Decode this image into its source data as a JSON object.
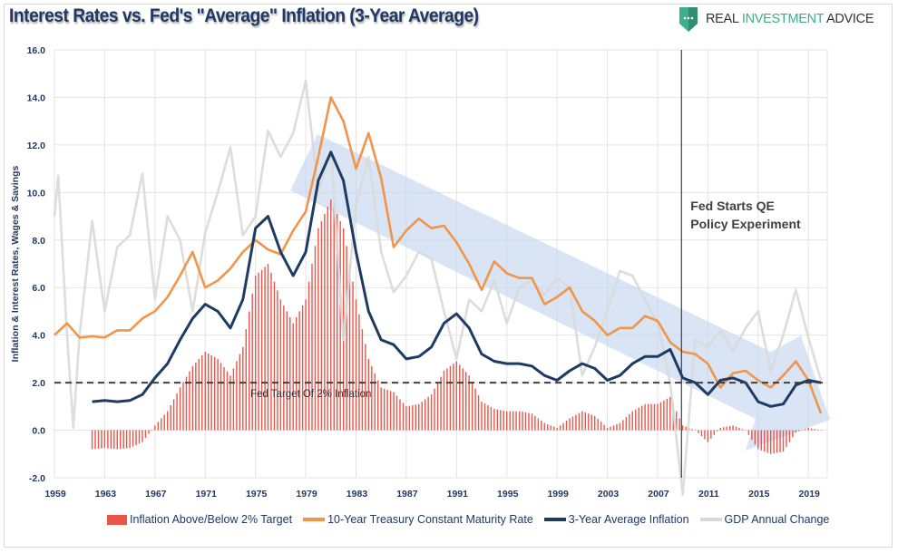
{
  "header": {
    "title": "Interest Rates vs. Fed's \"Average\" Inflation (3-Year Average)",
    "logo": {
      "text_1": "REAL ",
      "text_2": "INVESTMENT",
      "text_3": " ADVICE",
      "icon": "shield-chat-icon",
      "color": "#3fae8a"
    }
  },
  "chart_data": {
    "type": "line",
    "title": "Interest Rates vs. Fed's \"Average\" Inflation (3-Year Average)",
    "ylabel": "Inflation & Interest Rates, Wages & Savings",
    "xlabel": "",
    "ylim": [
      -2,
      16
    ],
    "xlim": [
      1959,
      2020.5
    ],
    "y_ticks": [
      "-2.0",
      "0.0",
      "2.0",
      "4.0",
      "6.0",
      "8.0",
      "10.0",
      "12.0",
      "14.0",
      "16.0"
    ],
    "x_ticks": [
      "1959",
      "1963",
      "1967",
      "1971",
      "1975",
      "1979",
      "1983",
      "1987",
      "1991",
      "1995",
      "1999",
      "2003",
      "2007",
      "2011",
      "2015",
      "2019"
    ],
    "grid": true,
    "legend_position": "bottom",
    "series": [
      {
        "name": "GDP Annual Change",
        "type": "line",
        "color": "#d9d9d9",
        "x": [
          1959,
          1959.3,
          1960,
          1960.5,
          1961,
          1962,
          1963,
          1964,
          1965,
          1966,
          1967,
          1968,
          1969,
          1970,
          1971,
          1972,
          1973,
          1974,
          1975,
          1976,
          1977,
          1978,
          1979,
          1980,
          1981,
          1982,
          1983,
          1984,
          1985,
          1986,
          1987,
          1988,
          1989,
          1990,
          1991,
          1992,
          1993,
          1994,
          1995,
          1996,
          1997,
          1998,
          1999,
          2000,
          2001,
          2002,
          2003,
          2004,
          2005,
          2006,
          2007,
          2008,
          2009,
          2010,
          2011,
          2012,
          2013,
          2014,
          2015,
          2016,
          2017,
          2018,
          2019,
          2020
        ],
        "values": [
          9.0,
          10.7,
          4.0,
          0.1,
          4.0,
          8.8,
          5.0,
          7.7,
          8.2,
          10.8,
          5.5,
          9.0,
          8.0,
          5.0,
          8.3,
          10.0,
          11.9,
          8.2,
          9.0,
          12.6,
          11.5,
          12.5,
          14.7,
          10.0,
          11.8,
          3.8,
          9.5,
          11.5,
          7.5,
          5.8,
          6.5,
          7.5,
          7.2,
          5.0,
          3.0,
          5.5,
          5.0,
          6.3,
          4.5,
          6.0,
          6.3,
          5.7,
          6.4,
          6.0,
          2.3,
          3.5,
          5.0,
          6.7,
          6.5,
          5.5,
          4.5,
          2.0,
          -2.7,
          3.8,
          3.5,
          4.2,
          3.3,
          4.3,
          5.0,
          2.5,
          4.0,
          5.9,
          3.9,
          2.1
        ]
      },
      {
        "name": "10-Year Treasury Constant Maturity Rate",
        "type": "line",
        "color": "#f0954a",
        "x": [
          1959,
          1960,
          1961,
          1962,
          1963,
          1964,
          1965,
          1966,
          1967,
          1968,
          1969,
          1970,
          1971,
          1972,
          1973,
          1974,
          1975,
          1976,
          1977,
          1978,
          1979,
          1980,
          1981,
          1982,
          1983,
          1984,
          1985,
          1986,
          1987,
          1988,
          1989,
          1990,
          1991,
          1992,
          1993,
          1994,
          1995,
          1996,
          1997,
          1998,
          1999,
          2000,
          2001,
          2002,
          2003,
          2004,
          2005,
          2006,
          2007,
          2008,
          2009,
          2010,
          2011,
          2012,
          2013,
          2014,
          2015,
          2016,
          2017,
          2018,
          2019,
          2020
        ],
        "values": [
          4.0,
          4.5,
          3.9,
          3.95,
          3.9,
          4.2,
          4.2,
          4.7,
          5.0,
          5.6,
          6.5,
          7.5,
          6.0,
          6.3,
          6.8,
          7.5,
          8.0,
          7.6,
          7.4,
          8.4,
          9.2,
          11.5,
          14.0,
          13.0,
          11.0,
          12.5,
          10.6,
          7.7,
          8.4,
          8.9,
          8.5,
          8.6,
          7.9,
          7.0,
          5.9,
          7.1,
          6.6,
          6.4,
          6.4,
          5.3,
          5.6,
          6.0,
          5.0,
          4.6,
          4.0,
          4.3,
          4.3,
          4.8,
          4.6,
          3.7,
          3.3,
          3.2,
          2.8,
          1.8,
          2.4,
          2.5,
          2.1,
          1.8,
          2.3,
          2.9,
          2.1,
          0.7
        ]
      },
      {
        "name": "3-Year Average Inflation",
        "type": "line",
        "color": "#1f3b64",
        "x": [
          1962,
          1963,
          1964,
          1965,
          1966,
          1967,
          1968,
          1969,
          1970,
          1971,
          1972,
          1973,
          1974,
          1975,
          1976,
          1977,
          1978,
          1979,
          1980,
          1981,
          1982,
          1983,
          1984,
          1985,
          1986,
          1987,
          1988,
          1989,
          1990,
          1991,
          1992,
          1993,
          1994,
          1995,
          1996,
          1997,
          1998,
          1999,
          2000,
          2001,
          2002,
          2003,
          2004,
          2005,
          2006,
          2007,
          2008,
          2009,
          2010,
          2011,
          2012,
          2013,
          2014,
          2015,
          2016,
          2017,
          2018,
          2019,
          2020
        ],
        "values": [
          1.2,
          1.25,
          1.2,
          1.25,
          1.5,
          2.2,
          2.8,
          3.8,
          4.7,
          5.3,
          5.0,
          4.3,
          5.5,
          8.5,
          9.0,
          7.5,
          6.5,
          7.5,
          10.5,
          11.7,
          10.5,
          7.5,
          5.0,
          3.8,
          3.6,
          3.0,
          3.1,
          3.5,
          4.5,
          4.9,
          4.3,
          3.2,
          2.9,
          2.8,
          2.8,
          2.7,
          2.3,
          2.1,
          2.5,
          2.8,
          2.6,
          2.1,
          2.3,
          2.8,
          3.1,
          3.1,
          3.4,
          2.2,
          2.0,
          1.5,
          2.1,
          2.2,
          2.0,
          1.2,
          1.0,
          1.1,
          1.9,
          2.1,
          2.0
        ]
      },
      {
        "name": "Inflation Above/Below 2% Target",
        "type": "bar",
        "color": "#e8564a",
        "x": [
          1962,
          1963,
          1964,
          1965,
          1966,
          1967,
          1968,
          1969,
          1970,
          1971,
          1972,
          1973,
          1974,
          1975,
          1976,
          1977,
          1978,
          1979,
          1980,
          1981,
          1982,
          1983,
          1984,
          1985,
          1986,
          1987,
          1988,
          1989,
          1990,
          1991,
          1992,
          1993,
          1994,
          1995,
          1996,
          1997,
          1998,
          1999,
          2000,
          2001,
          2002,
          2003,
          2004,
          2005,
          2006,
          2007,
          2008,
          2009,
          2010,
          2011,
          2012,
          2013,
          2014,
          2015,
          2016,
          2017,
          2018,
          2019,
          2020
        ],
        "values": [
          -0.8,
          -0.75,
          -0.8,
          -0.75,
          -0.5,
          0.2,
          0.8,
          1.8,
          2.7,
          3.3,
          3.0,
          2.3,
          3.5,
          6.5,
          7.0,
          5.5,
          4.5,
          5.5,
          8.5,
          9.7,
          8.5,
          5.5,
          3.0,
          1.8,
          1.6,
          1.0,
          1.1,
          1.5,
          2.5,
          2.9,
          2.3,
          1.2,
          0.9,
          0.8,
          0.8,
          0.7,
          0.3,
          0.1,
          0.5,
          0.8,
          0.6,
          0.1,
          0.3,
          0.8,
          1.1,
          1.1,
          1.4,
          0.2,
          0.0,
          -0.5,
          0.1,
          0.2,
          0.0,
          -0.8,
          -1.0,
          -0.9,
          -0.1,
          0.1,
          0.0
        ]
      }
    ],
    "reference_lines": [
      {
        "type": "horizontal",
        "y": 2.0,
        "label": "Fed Target Of 2% Inflation",
        "style": "dashed",
        "color": "#404040"
      },
      {
        "type": "vertical",
        "x": 2008.9,
        "label_1": "Fed Starts QE",
        "label_2": "Policy Experiment",
        "color": "#404040"
      }
    ],
    "annotations": [
      {
        "type": "downtrend-arrow",
        "color": "#c5d6ee"
      }
    ]
  },
  "legend": [
    {
      "label": "Inflation Above/Below 2% Target",
      "color": "#e8564a",
      "kind": "box"
    },
    {
      "label": "10-Year Treasury Constant Maturity Rate",
      "color": "#f0954a",
      "kind": "line"
    },
    {
      "label": "3-Year Average Inflation",
      "color": "#1f3b64",
      "kind": "line"
    },
    {
      "label": "GDP Annual Change",
      "color": "#d9d9d9",
      "kind": "line"
    }
  ]
}
